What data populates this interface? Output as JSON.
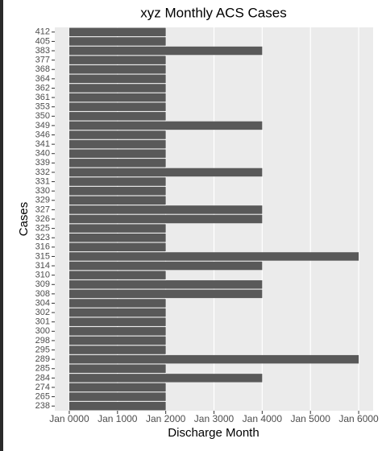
{
  "chart_data": {
    "type": "bar",
    "orientation": "horizontal",
    "title": "xyz Monthly ACS Cases",
    "x_label": "Discharge Month",
    "y_label": "Cases",
    "categories": [
      "412",
      "405",
      "383",
      "377",
      "368",
      "364",
      "362",
      "361",
      "353",
      "350",
      "349",
      "346",
      "341",
      "340",
      "339",
      "332",
      "331",
      "330",
      "329",
      "327",
      "326",
      "325",
      "323",
      "316",
      "315",
      "314",
      "310",
      "309",
      "308",
      "304",
      "302",
      "301",
      "300",
      "298",
      "295",
      "289",
      "285",
      "284",
      "274",
      "265",
      "238"
    ],
    "values": [
      2000,
      2000,
      4000,
      2000,
      2000,
      2000,
      2000,
      2000,
      2000,
      2000,
      4000,
      2000,
      2000,
      2000,
      2000,
      4000,
      2000,
      2000,
      2000,
      4000,
      4000,
      2000,
      2000,
      2000,
      6000,
      4000,
      2000,
      4000,
      4000,
      2000,
      2000,
      2000,
      2000,
      2000,
      2000,
      6000,
      2000,
      4000,
      2000,
      2000,
      2000
    ],
    "color": "#595959",
    "xlim": [
      -300,
      6300
    ],
    "xticks": [
      {
        "value": 0,
        "label": "Jan 0000"
      },
      {
        "value": 1000,
        "label": "Jan 1000"
      },
      {
        "value": 2000,
        "label": "Jan 2000"
      },
      {
        "value": 3000,
        "label": "Jan 3000"
      },
      {
        "value": 4000,
        "label": "Jan 4000"
      },
      {
        "value": 5000,
        "label": "Jan 5000"
      },
      {
        "value": 6000,
        "label": "Jan 6000"
      }
    ],
    "grid": true
  }
}
